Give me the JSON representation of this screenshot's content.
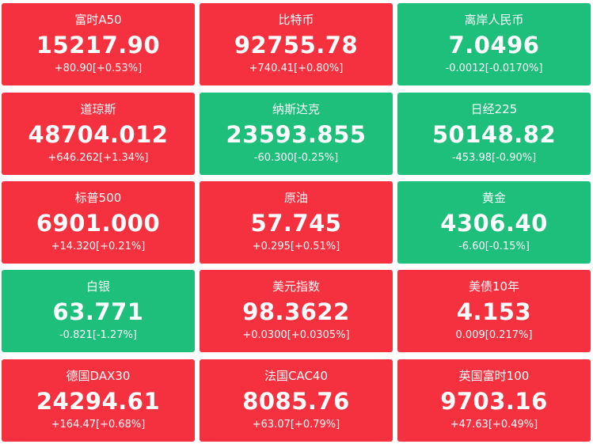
{
  "tiles": [
    {
      "name": "富时A50",
      "price": "15217.90",
      "change": "+80.90[+0.53%]",
      "color": "#f5303f"
    },
    {
      "name": "比特币",
      "price": "92755.78",
      "change": "+740.41[+0.80%]",
      "color": "#f5303f"
    },
    {
      "name": "离岸人民币",
      "price": "7.0496",
      "change": "-0.0012[-0.0170%]",
      "color": "#1dbf7a"
    },
    {
      "name": "道琼斯",
      "price": "48704.012",
      "change": "+646.262[+1.34%]",
      "color": "#f5303f"
    },
    {
      "name": "纳斯达克",
      "price": "23593.855",
      "change": "-60.300[-0.25%]",
      "color": "#1dbf7a"
    },
    {
      "name": "日经225",
      "price": "50148.82",
      "change": "-453.98[-0.90%]",
      "color": "#1dbf7a"
    },
    {
      "name": "标普500",
      "price": "6901.000",
      "change": "+14.320[+0.21%]",
      "color": "#f5303f"
    },
    {
      "name": "原油",
      "price": "57.745",
      "change": "+0.295[+0.51%]",
      "color": "#f5303f"
    },
    {
      "name": "黄金",
      "price": "4306.40",
      "change": "-6.60[-0.15%]",
      "color": "#1dbf7a"
    },
    {
      "name": "白银",
      "price": "63.771",
      "change": "-0.821[-1.27%]",
      "color": "#1dbf7a"
    },
    {
      "name": "美元指数",
      "price": "98.3622",
      "change": "+0.0300[+0.0305%]",
      "color": "#f5303f"
    },
    {
      "name": "美债10年",
      "price": "4.153",
      "change": "0.009[0.217%]",
      "color": "#f5303f"
    },
    {
      "name": "德国DAX30",
      "price": "24294.61",
      "change": "+164.47[+0.68%]",
      "color": "#f5303f"
    },
    {
      "name": "法国CAC40",
      "price": "8085.76",
      "change": "+63.07[+0.79%]",
      "color": "#f5303f"
    },
    {
      "name": "英国富时100",
      "price": "9703.16",
      "change": "+47.63[+0.49%]",
      "color": "#f5303f"
    }
  ]
}
